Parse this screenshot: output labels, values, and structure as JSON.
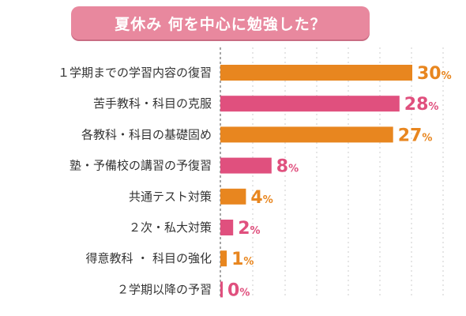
{
  "chart_data": {
    "type": "bar",
    "orientation": "horizontal",
    "title": "夏休み 何を中心に勉強した？",
    "categories": [
      "１学期までの学習内容の復習",
      "苦手教科・科目の克服",
      "各教科・科目の基礎固め",
      "塾・予備校の講習の予復習",
      "共通テスト対策",
      "２次・私大対策",
      "得意教科 ・ 科目の強化",
      "２学期以降の予習"
    ],
    "values": [
      30,
      28,
      27,
      8,
      4,
      2,
      1,
      0
    ],
    "value_labels": [
      "30",
      "28",
      "27",
      "8",
      "4",
      "2",
      "1",
      "0"
    ],
    "unit": "%",
    "bar_colors": [
      "#e8861f",
      "#e0507e",
      "#e8861f",
      "#e0507e",
      "#e8861f",
      "#e0507e",
      "#e8861f",
      "#e0507e"
    ],
    "xlim": [
      0,
      32
    ],
    "grid": true,
    "legend": "none"
  }
}
